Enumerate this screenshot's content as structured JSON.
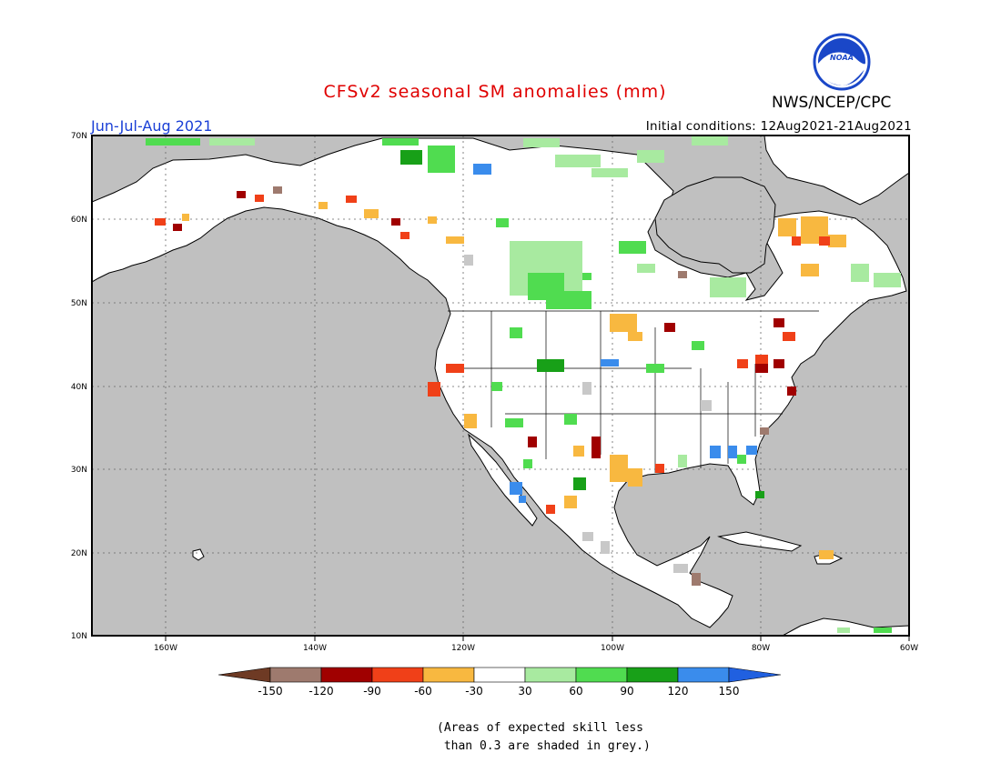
{
  "title": "CFSv2 seasonal SM anomalies (mm)",
  "agency": "NWS/NCEP/CPC",
  "logo_text": "NOAA",
  "season": "Jun-Jul-Aug 2021",
  "initial_conditions": "Initial conditions: 12Aug2021-21Aug2021",
  "note_line1": "(Areas of expected skill less",
  "note_line2": " than 0.3 are shaded in grey.)",
  "map": {
    "lon_ticks": [
      "160W",
      "140W",
      "120W",
      "100W",
      "80W",
      "60W"
    ],
    "lat_ticks": [
      "70N",
      "60N",
      "50N",
      "40N",
      "30N",
      "20N",
      "10N"
    ],
    "ocean_color": "#c0c0c0",
    "land_color": "#ffffff"
  },
  "legend": {
    "labels": [
      "-150",
      "-120",
      "-90",
      "-60",
      "-30",
      "30",
      "60",
      "90",
      "120",
      "150"
    ],
    "colors": [
      "#6e3a24",
      "#9e7a6e",
      "#a00000",
      "#f04018",
      "#f8b840",
      "#ffffff",
      "#a8eaa0",
      "#50dc50",
      "#18a018",
      "#3a8cec",
      "#2060e0"
    ]
  }
}
